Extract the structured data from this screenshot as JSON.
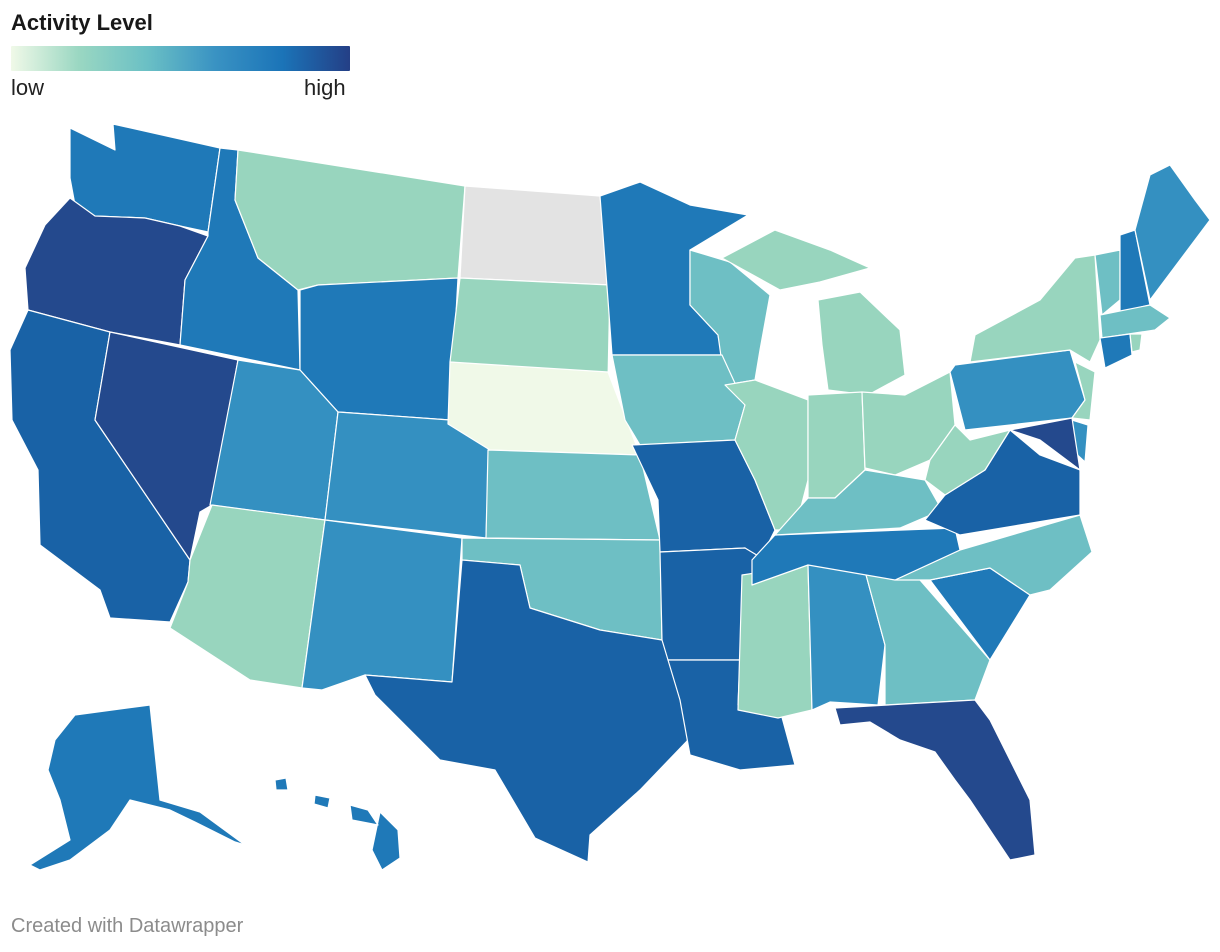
{
  "legend": {
    "title": "Activity Level",
    "low_label": "low",
    "high_label": "high",
    "gradient": [
      "#f0f9e8",
      "#9ad7c2",
      "#6bc0c5",
      "#3a93c3",
      "#1b74b8",
      "#243f86"
    ]
  },
  "levels": {
    "nodata": "#e3e3e3",
    "l0": "#f0f9e8",
    "l1": "#98d5be",
    "l2": "#6ebfc4",
    "l3": "#3490c1",
    "l4": "#1f79b8",
    "l5": "#1962a6",
    "l6": "#24498d"
  },
  "footer": "Created with Datawrapper"
}
